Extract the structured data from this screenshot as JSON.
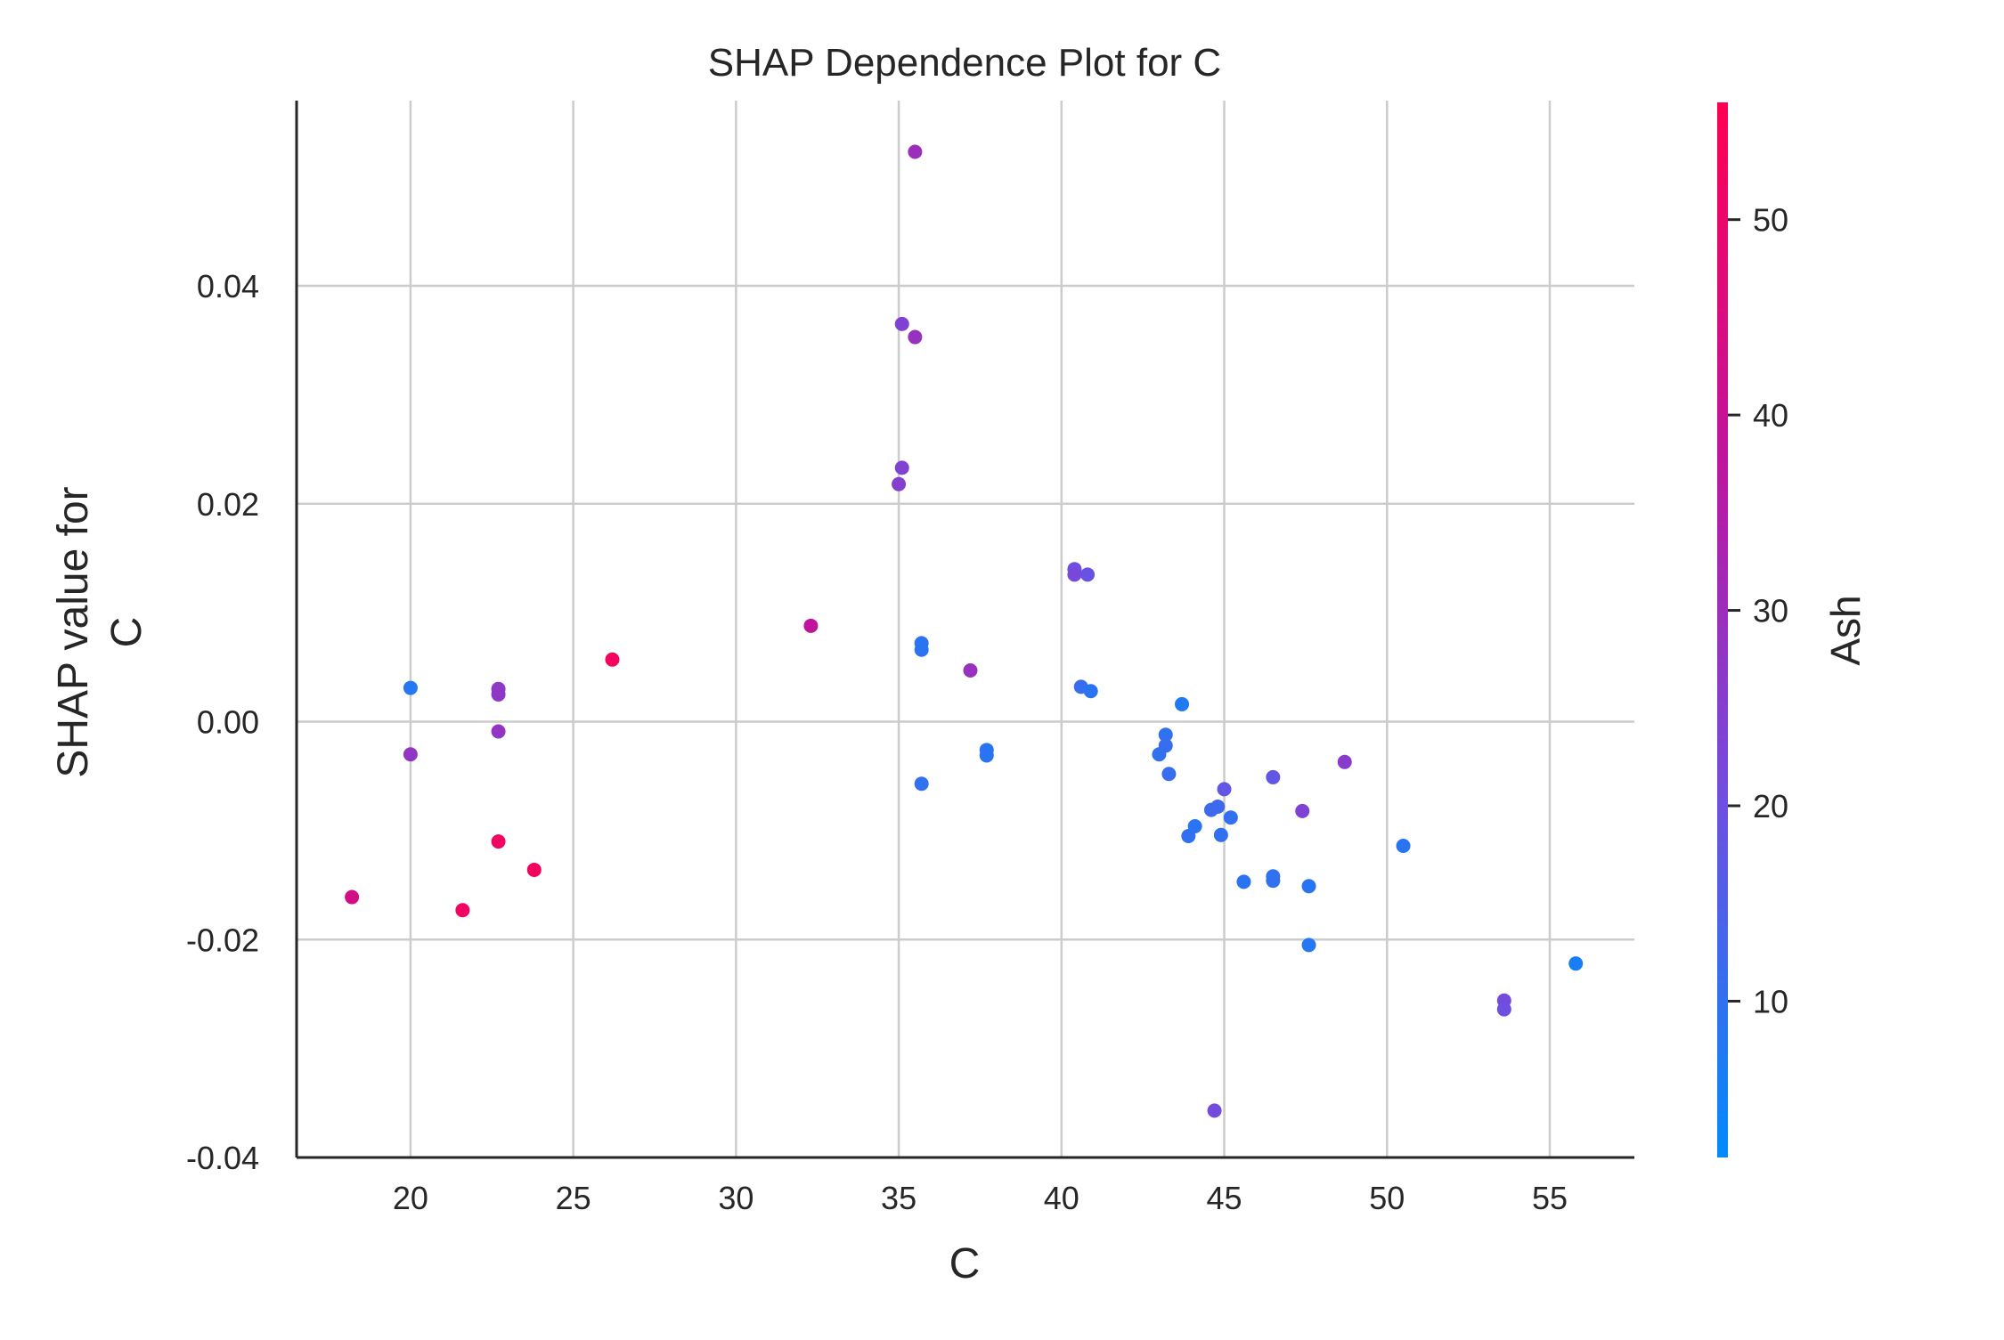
{
  "chart_data": {
    "type": "scatter",
    "title": "SHAP Dependence Plot for C",
    "xlabel": "C",
    "ylabel_lines": [
      "SHAP value for",
      "C"
    ],
    "xlim": [
      16.5,
      57.6
    ],
    "ylim": [
      -0.04,
      0.057
    ],
    "xticks": [
      20,
      25,
      30,
      35,
      40,
      45,
      50,
      55
    ],
    "xtick_labels": [
      "20",
      "25",
      "30",
      "35",
      "40",
      "45",
      "50",
      "55"
    ],
    "yticks": [
      -0.04,
      -0.02,
      0.0,
      0.02,
      0.04
    ],
    "ytick_labels": [
      "-0.04",
      "-0.02",
      "0.00",
      "0.02",
      "0.04"
    ],
    "grid": true,
    "colorbar": {
      "label": "Ash",
      "range": [
        2,
        56
      ],
      "ticks": [
        10,
        20,
        30,
        40,
        50
      ],
      "tick_labels": [
        "10",
        "20",
        "30",
        "40",
        "50"
      ],
      "colormap": [
        "#008bfb",
        "#6e4fe1",
        "#c0149c",
        "#ff0052"
      ]
    },
    "points": [
      {
        "x": 35.5,
        "y": 0.0523,
        "c": 30
      },
      {
        "x": 35.1,
        "y": 0.0365,
        "c": 24
      },
      {
        "x": 35.5,
        "y": 0.0353,
        "c": 29
      },
      {
        "x": 35.1,
        "y": 0.0233,
        "c": 24
      },
      {
        "x": 35.0,
        "y": 0.0218,
        "c": 25
      },
      {
        "x": 40.4,
        "y": 0.014,
        "c": 20
      },
      {
        "x": 40.4,
        "y": 0.0135,
        "c": 22
      },
      {
        "x": 40.8,
        "y": 0.0135,
        "c": 19
      },
      {
        "x": 32.3,
        "y": 0.0088,
        "c": 38
      },
      {
        "x": 35.7,
        "y": 0.0072,
        "c": 9
      },
      {
        "x": 35.7,
        "y": 0.0066,
        "c": 9
      },
      {
        "x": 26.2,
        "y": 0.0057,
        "c": 53
      },
      {
        "x": 37.2,
        "y": 0.0047,
        "c": 29
      },
      {
        "x": 20.0,
        "y": 0.0031,
        "c": 8
      },
      {
        "x": 22.7,
        "y": 0.003,
        "c": 27
      },
      {
        "x": 22.7,
        "y": 0.0025,
        "c": 27
      },
      {
        "x": 40.6,
        "y": 0.0032,
        "c": 11
      },
      {
        "x": 40.9,
        "y": 0.0028,
        "c": 9
      },
      {
        "x": 43.7,
        "y": 0.0016,
        "c": 7
      },
      {
        "x": 22.7,
        "y": -0.0009,
        "c": 28
      },
      {
        "x": 20.0,
        "y": -0.003,
        "c": 28
      },
      {
        "x": 43.2,
        "y": -0.0012,
        "c": 10
      },
      {
        "x": 43.2,
        "y": -0.0022,
        "c": 11
      },
      {
        "x": 43.0,
        "y": -0.003,
        "c": 10
      },
      {
        "x": 37.7,
        "y": -0.0026,
        "c": 9
      },
      {
        "x": 37.7,
        "y": -0.0031,
        "c": 9
      },
      {
        "x": 48.7,
        "y": -0.0037,
        "c": 26
      },
      {
        "x": 43.3,
        "y": -0.0048,
        "c": 11
      },
      {
        "x": 46.5,
        "y": -0.0051,
        "c": 18
      },
      {
        "x": 35.7,
        "y": -0.0057,
        "c": 10
      },
      {
        "x": 45.0,
        "y": -0.0062,
        "c": 18
      },
      {
        "x": 44.8,
        "y": -0.0078,
        "c": 12
      },
      {
        "x": 44.6,
        "y": -0.0081,
        "c": 12
      },
      {
        "x": 47.4,
        "y": -0.0082,
        "c": 24
      },
      {
        "x": 45.2,
        "y": -0.0088,
        "c": 10
      },
      {
        "x": 44.1,
        "y": -0.0096,
        "c": 9
      },
      {
        "x": 43.9,
        "y": -0.0105,
        "c": 10
      },
      {
        "x": 44.9,
        "y": -0.0104,
        "c": 10
      },
      {
        "x": 22.7,
        "y": -0.011,
        "c": 52
      },
      {
        "x": 50.5,
        "y": -0.0114,
        "c": 9
      },
      {
        "x": 23.8,
        "y": -0.0136,
        "c": 53
      },
      {
        "x": 46.5,
        "y": -0.0142,
        "c": 10
      },
      {
        "x": 46.5,
        "y": -0.0146,
        "c": 10
      },
      {
        "x": 45.6,
        "y": -0.0147,
        "c": 9
      },
      {
        "x": 47.6,
        "y": -0.0151,
        "c": 9
      },
      {
        "x": 18.2,
        "y": -0.0161,
        "c": 43
      },
      {
        "x": 21.6,
        "y": -0.0173,
        "c": 52
      },
      {
        "x": 47.6,
        "y": -0.0205,
        "c": 8
      },
      {
        "x": 55.8,
        "y": -0.0222,
        "c": 6
      },
      {
        "x": 53.6,
        "y": -0.0256,
        "c": 21
      },
      {
        "x": 53.6,
        "y": -0.0264,
        "c": 20
      },
      {
        "x": 44.7,
        "y": -0.0357,
        "c": 21
      }
    ]
  }
}
